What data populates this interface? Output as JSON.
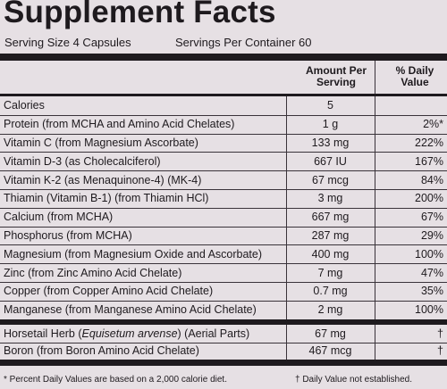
{
  "header": {
    "title": "Supplement Facts",
    "serving_size": "Serving Size 4 Capsules",
    "servings_per_container": "Servings Per Container 60"
  },
  "columns": {
    "amount": "Amount Per Serving",
    "daily_value": "% Daily Value"
  },
  "nutrients": [
    {
      "name": "Calories",
      "amount": "5"
    },
    {
      "name": "Protein (from MCHA and Amino Acid Chelates)",
      "amount": "1 g",
      "dv": "2%*"
    },
    {
      "name": "Vitamin C (from Magnesium Ascorbate)",
      "amount": "133 mg",
      "dv": "222%"
    },
    {
      "name": "Vitamin D-3 (as Cholecalciferol)",
      "amount": "667 IU",
      "dv": "167%"
    },
    {
      "name": "Vitamin K-2 (as Menaquinone-4) (MK-4)",
      "amount": "67 mcg",
      "dv": "84%"
    },
    {
      "name": "Thiamin (Vitamin B-1) (from Thiamin HCl)",
      "amount": "3 mg",
      "dv": "200%"
    },
    {
      "name": "Calcium (from MCHA)",
      "amount": "667 mg",
      "dv": "67%"
    },
    {
      "name": "Phosphorus (from MCHA)",
      "amount": "287 mg",
      "dv": "29%"
    },
    {
      "name": "Magnesium (from Magnesium Oxide and Ascorbate)",
      "amount": "400 mg",
      "dv": "100%"
    },
    {
      "name": "Zinc (from Zinc Amino Acid Chelate)",
      "amount": "7 mg",
      "dv": "47%"
    },
    {
      "name": "Copper (from Copper Amino Acid Chelate)",
      "amount": "0.7 mg",
      "dv": "35%"
    },
    {
      "name": "Manganese (from Manganese Amino Acid Chelate)",
      "amount": "2 mg",
      "dv": "100%"
    }
  ],
  "other_ingredients": [
    {
      "name_pre": "Horsetail Herb (",
      "name_italic": "Equisetum arvense",
      "name_post": ") (Aerial Parts)",
      "amount": "67 mg",
      "dv": "†"
    },
    {
      "name": "Boron (from Boron Amino Acid Chelate)",
      "amount": "467 mcg",
      "dv": "†"
    }
  ],
  "footnotes": {
    "percent": "* Percent Daily Values are based on a 2,000 calorie diet.",
    "not_established": "† Daily Value not established."
  }
}
